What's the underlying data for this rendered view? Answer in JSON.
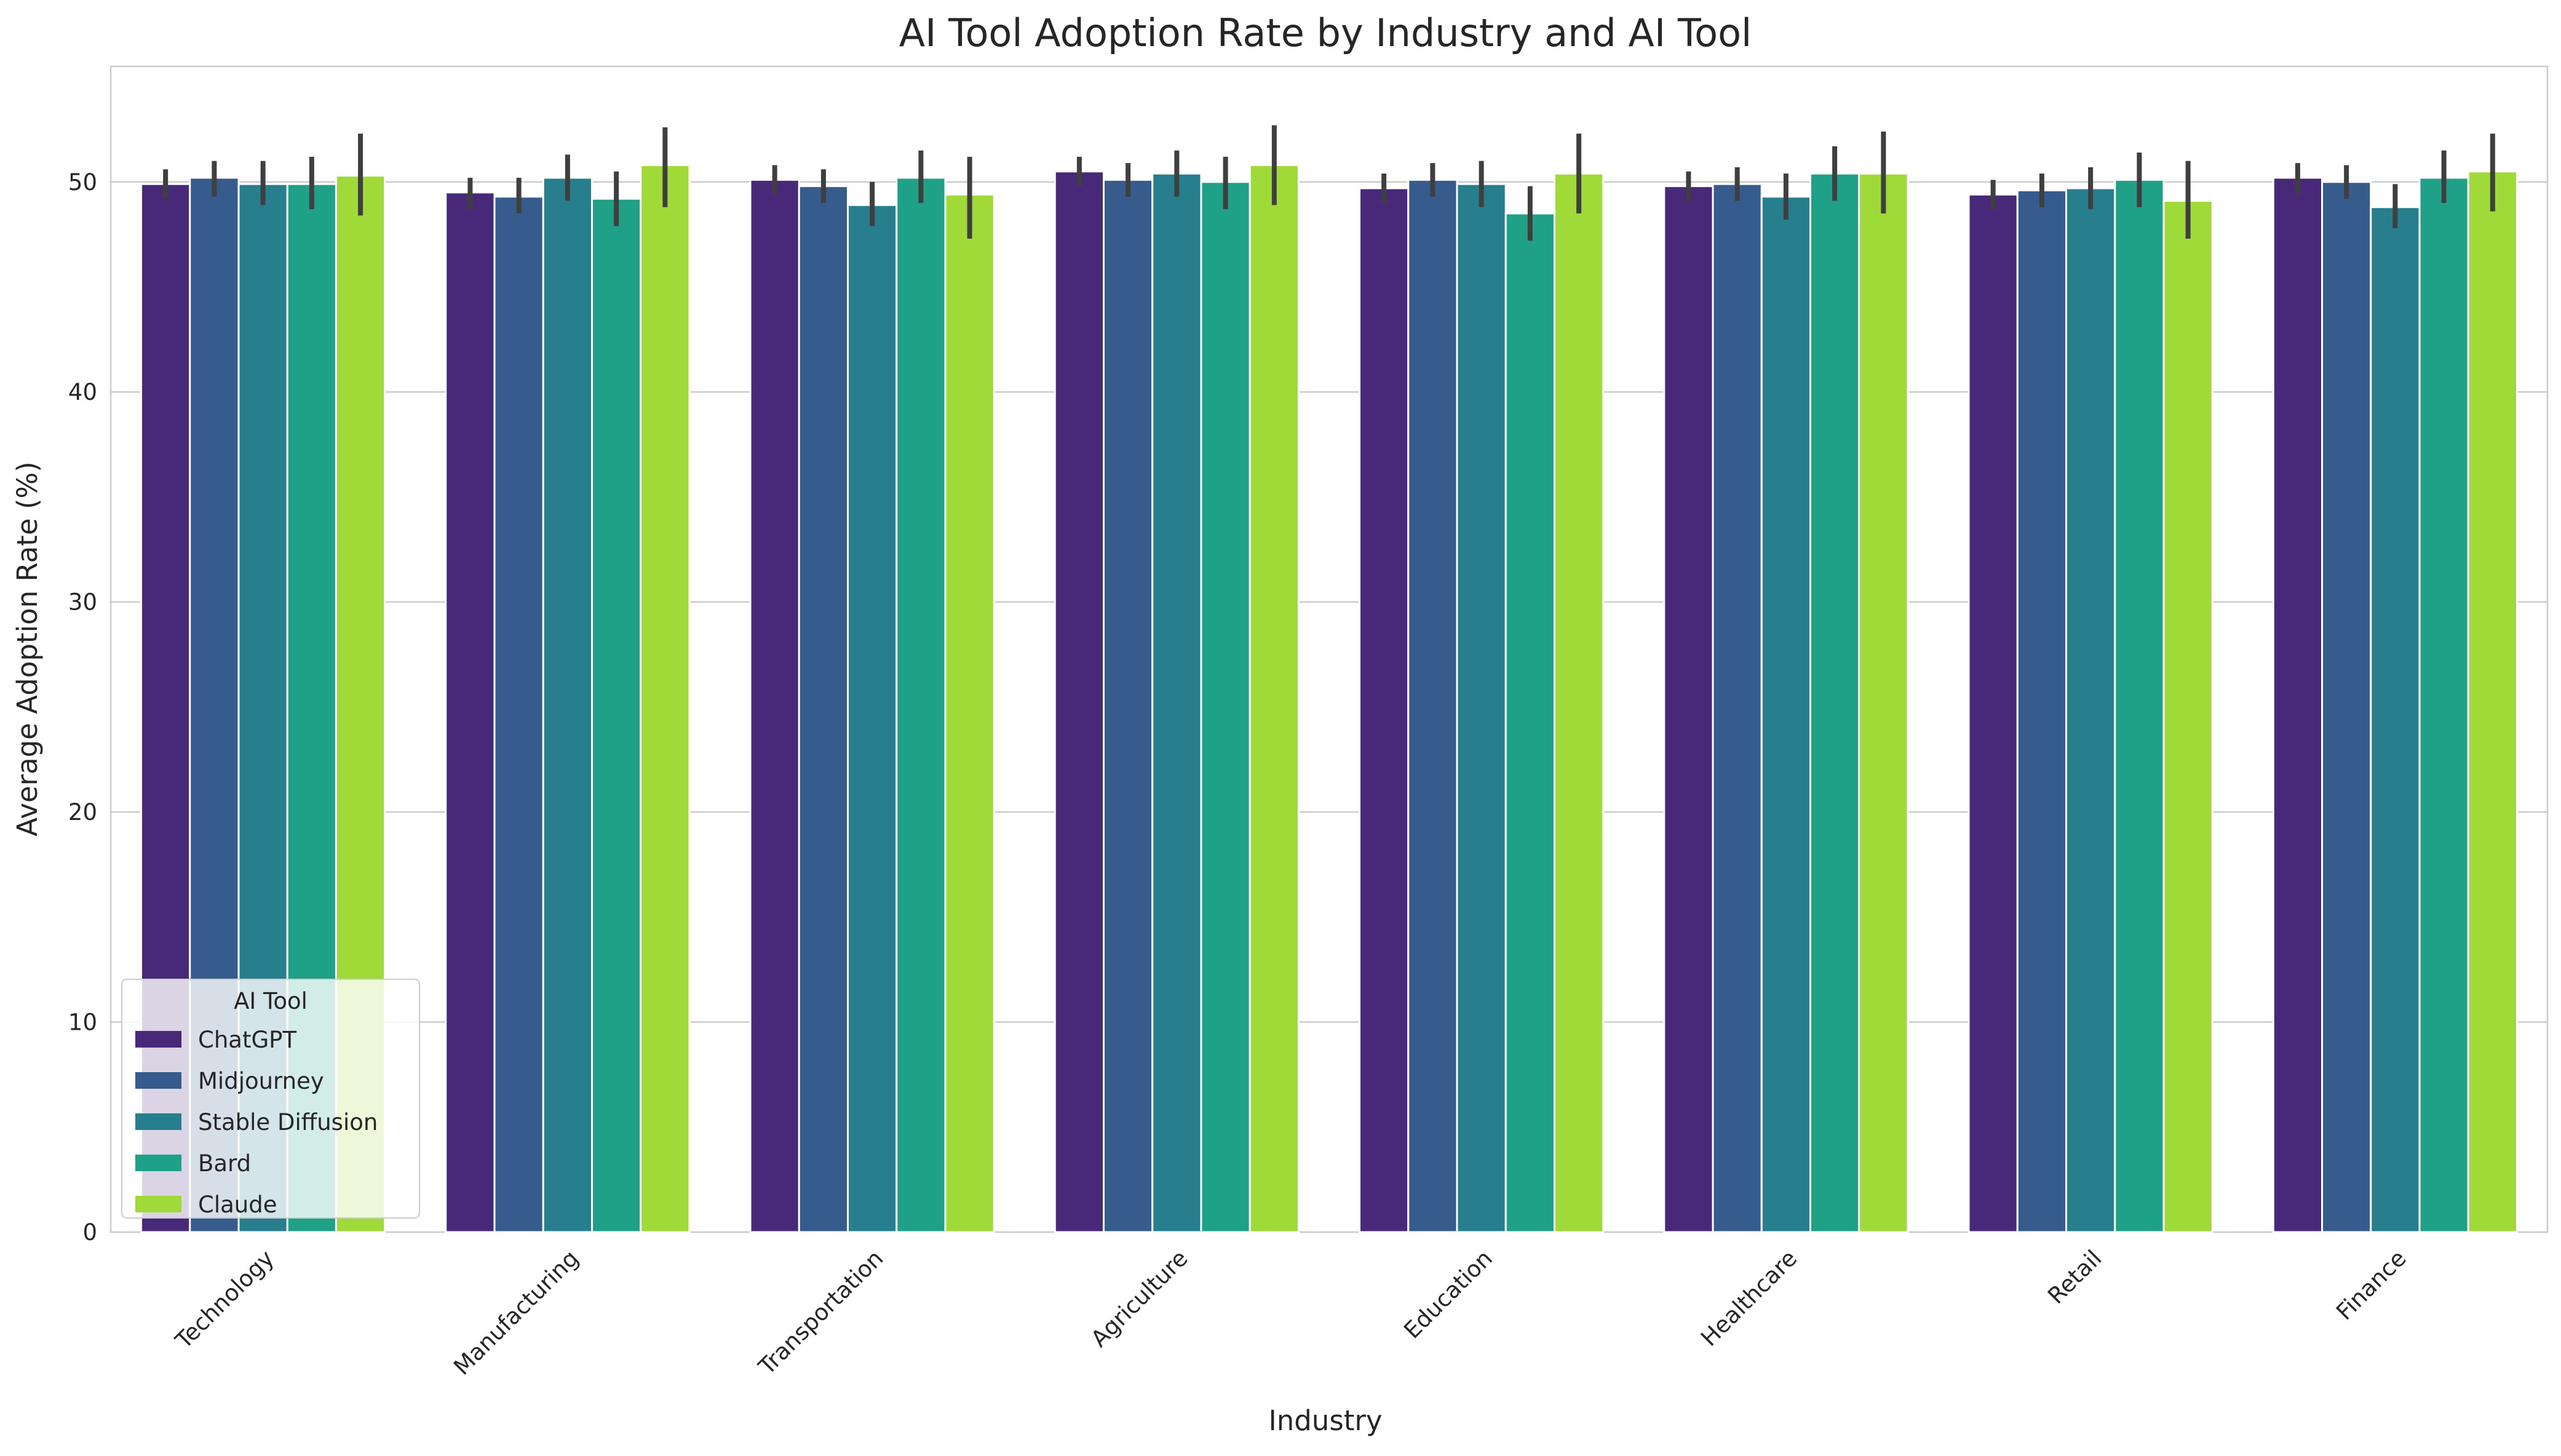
{
  "chart_data": {
    "type": "bar",
    "title": "AI Tool Adoption Rate by Industry and AI Tool",
    "xlabel": "Industry",
    "ylabel": "Average Adoption Rate (%)",
    "ylim": [
      0,
      55.5
    ],
    "yticks": [
      0,
      10,
      20,
      30,
      40,
      50
    ],
    "grid": "y",
    "legend": {
      "title": "AI Tool",
      "placement": "lower-left"
    },
    "categories": [
      "Technology",
      "Manufacturing",
      "Transportation",
      "Agriculture",
      "Education",
      "Healthcare",
      "Retail",
      "Finance"
    ],
    "series": [
      {
        "name": "ChatGPT",
        "color": "#482878",
        "values": [
          49.9,
          49.5,
          50.1,
          50.5,
          49.7,
          49.8,
          49.4,
          50.2
        ],
        "err_low": [
          49.2,
          48.7,
          49.4,
          49.8,
          49.0,
          49.1,
          48.7,
          49.4
        ],
        "err_high": [
          50.6,
          50.2,
          50.8,
          51.2,
          50.4,
          50.5,
          50.1,
          50.9
        ]
      },
      {
        "name": "Midjourney",
        "color": "#365c8d",
        "values": [
          50.2,
          49.3,
          49.8,
          50.1,
          50.1,
          49.9,
          49.6,
          50.0
        ],
        "err_low": [
          49.3,
          48.5,
          49.0,
          49.3,
          49.3,
          49.1,
          48.8,
          49.2
        ],
        "err_high": [
          51.0,
          50.2,
          50.6,
          50.9,
          50.9,
          50.7,
          50.4,
          50.8
        ]
      },
      {
        "name": "Stable Diffusion",
        "color": "#277f8e",
        "values": [
          49.9,
          50.2,
          48.9,
          50.4,
          49.9,
          49.3,
          49.7,
          48.8
        ],
        "err_low": [
          48.9,
          49.1,
          47.9,
          49.3,
          48.8,
          48.2,
          48.7,
          47.8
        ],
        "err_high": [
          51.0,
          51.3,
          50.0,
          51.5,
          51.0,
          50.4,
          50.7,
          49.9
        ]
      },
      {
        "name": "Bard",
        "color": "#1fa187",
        "values": [
          49.9,
          49.2,
          50.2,
          50.0,
          48.5,
          50.4,
          50.1,
          50.2
        ],
        "err_low": [
          48.7,
          47.9,
          49.0,
          48.7,
          47.2,
          49.1,
          48.8,
          49.0
        ],
        "err_high": [
          51.2,
          50.5,
          51.5,
          51.2,
          49.8,
          51.7,
          51.4,
          51.5
        ]
      },
      {
        "name": "Claude",
        "color": "#a0da39",
        "values": [
          50.3,
          50.8,
          49.4,
          50.8,
          50.4,
          50.4,
          49.1,
          50.5
        ],
        "err_low": [
          48.4,
          48.8,
          47.3,
          48.9,
          48.5,
          48.5,
          47.3,
          48.6
        ],
        "err_high": [
          52.3,
          52.6,
          51.2,
          52.7,
          52.3,
          52.4,
          51.0,
          52.3
        ]
      }
    ]
  }
}
